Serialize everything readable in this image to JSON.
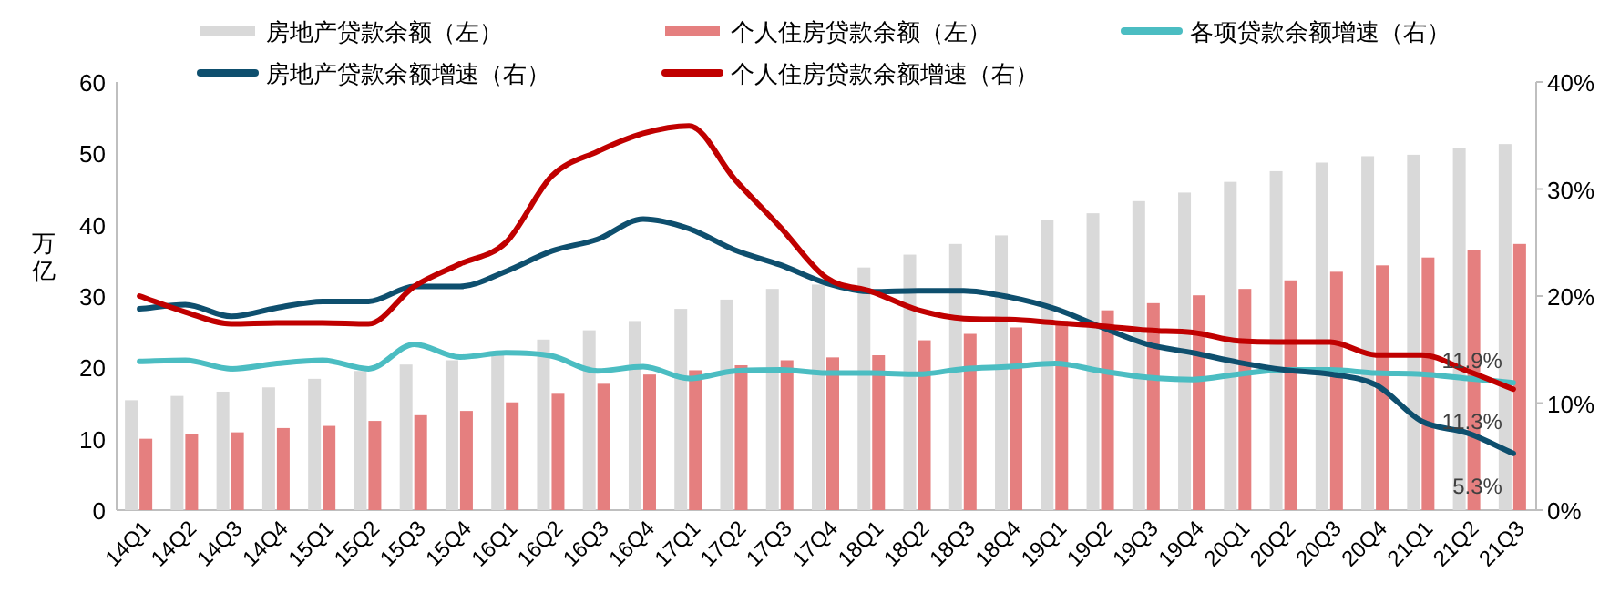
{
  "chart_data": {
    "type": "bar",
    "legend": "top",
    "ylabel": "万亿",
    "categories": [
      "14Q1",
      "14Q2",
      "14Q3",
      "14Q4",
      "15Q1",
      "15Q2",
      "15Q3",
      "15Q4",
      "16Q1",
      "16Q2",
      "16Q3",
      "16Q4",
      "17Q1",
      "17Q2",
      "17Q3",
      "17Q4",
      "18Q1",
      "18Q2",
      "18Q3",
      "18Q4",
      "19Q1",
      "19Q2",
      "19Q3",
      "19Q4",
      "20Q1",
      "20Q2",
      "20Q3",
      "20Q4",
      "21Q1",
      "21Q2",
      "21Q3"
    ],
    "ylim": [
      0,
      60
    ],
    "yticks": [
      0,
      10,
      20,
      30,
      40,
      50,
      60
    ],
    "y2lim": [
      0,
      40
    ],
    "y2ticks": [
      {
        "value": 0,
        "label": "0%"
      },
      {
        "value": 10,
        "label": "10%"
      },
      {
        "value": 20,
        "label": "20%"
      },
      {
        "value": 30,
        "label": "30%"
      },
      {
        "value": 40,
        "label": "40%"
      }
    ],
    "series": [
      {
        "name": "房地产贷款余额（左）",
        "color": "#d9d9d9",
        "values": [
          15.4,
          16.0,
          16.6,
          17.2,
          18.4,
          19.5,
          20.4,
          21.0,
          22.2,
          23.9,
          25.2,
          26.5,
          28.2,
          29.5,
          31.0,
          31.6,
          34.0,
          35.8,
          37.3,
          38.5,
          40.7,
          41.6,
          43.3,
          44.5,
          46.0,
          47.5,
          48.7,
          49.6,
          49.8,
          50.7,
          51.3
        ]
      },
      {
        "name": "个人住房贷款余额（左）",
        "color": "#e57f7f",
        "values": [
          10.0,
          10.6,
          10.9,
          11.5,
          11.8,
          12.5,
          13.3,
          13.9,
          15.1,
          16.3,
          17.7,
          19.0,
          19.6,
          20.3,
          21.0,
          21.4,
          21.7,
          23.8,
          24.7,
          25.6,
          26.5,
          28.0,
          29.0,
          30.1,
          31.0,
          32.2,
          33.4,
          34.3,
          35.4,
          36.4,
          37.3
        ]
      },
      {
        "name": "各项贷款余额增速（右）",
        "type": "line",
        "axis": "y2",
        "color": "#4bbdc2",
        "values": [
          13.9,
          14.0,
          13.2,
          13.7,
          14.0,
          13.2,
          15.5,
          14.3,
          14.7,
          14.4,
          13.0,
          13.4,
          12.3,
          13.0,
          13.1,
          12.8,
          12.8,
          12.7,
          13.2,
          13.4,
          13.7,
          13.0,
          12.4,
          12.2,
          12.7,
          13.1,
          13.1,
          12.8,
          12.7,
          12.3,
          11.9
        ],
        "value_labels": [
          null,
          null,
          null,
          null,
          null,
          null,
          null,
          null,
          null,
          null,
          null,
          null,
          null,
          null,
          null,
          null,
          null,
          null,
          null,
          null,
          null,
          null,
          null,
          null,
          null,
          null,
          null,
          null,
          null,
          null,
          "11.9%"
        ]
      },
      {
        "name": "房地产贷款余额增速（右）",
        "type": "line",
        "axis": "y2",
        "color": "#0e4f6e",
        "values": [
          18.8,
          19.2,
          18.1,
          18.9,
          19.5,
          19.5,
          20.9,
          20.9,
          22.3,
          24.2,
          25.3,
          27.2,
          26.3,
          24.3,
          22.9,
          21.2,
          20.4,
          20.5,
          20.5,
          19.9,
          18.8,
          17.1,
          15.5,
          14.7,
          13.8,
          13.1,
          12.7,
          11.7,
          8.3,
          7.2,
          5.3
        ],
        "value_labels": [
          null,
          null,
          null,
          null,
          null,
          null,
          null,
          null,
          null,
          null,
          null,
          null,
          null,
          null,
          null,
          null,
          null,
          null,
          null,
          null,
          null,
          null,
          null,
          null,
          null,
          null,
          null,
          null,
          null,
          null,
          "5.3%"
        ]
      },
      {
        "name": "个人住房贷款余额增速（右）",
        "type": "line",
        "axis": "y2",
        "color": "#c00000",
        "values": [
          20.0,
          18.5,
          17.4,
          17.5,
          17.5,
          17.4,
          20.9,
          23.0,
          25.0,
          31.2,
          33.5,
          35.2,
          35.9,
          30.9,
          26.4,
          21.7,
          20.4,
          18.7,
          17.9,
          17.8,
          17.5,
          17.2,
          16.8,
          16.6,
          15.8,
          15.7,
          15.7,
          14.5,
          14.5,
          13.0,
          11.3
        ],
        "value_labels": [
          null,
          null,
          null,
          null,
          null,
          null,
          null,
          null,
          null,
          null,
          null,
          null,
          null,
          null,
          null,
          null,
          null,
          null,
          null,
          null,
          null,
          null,
          null,
          null,
          null,
          null,
          null,
          null,
          null,
          null,
          "11.3%"
        ]
      }
    ]
  }
}
